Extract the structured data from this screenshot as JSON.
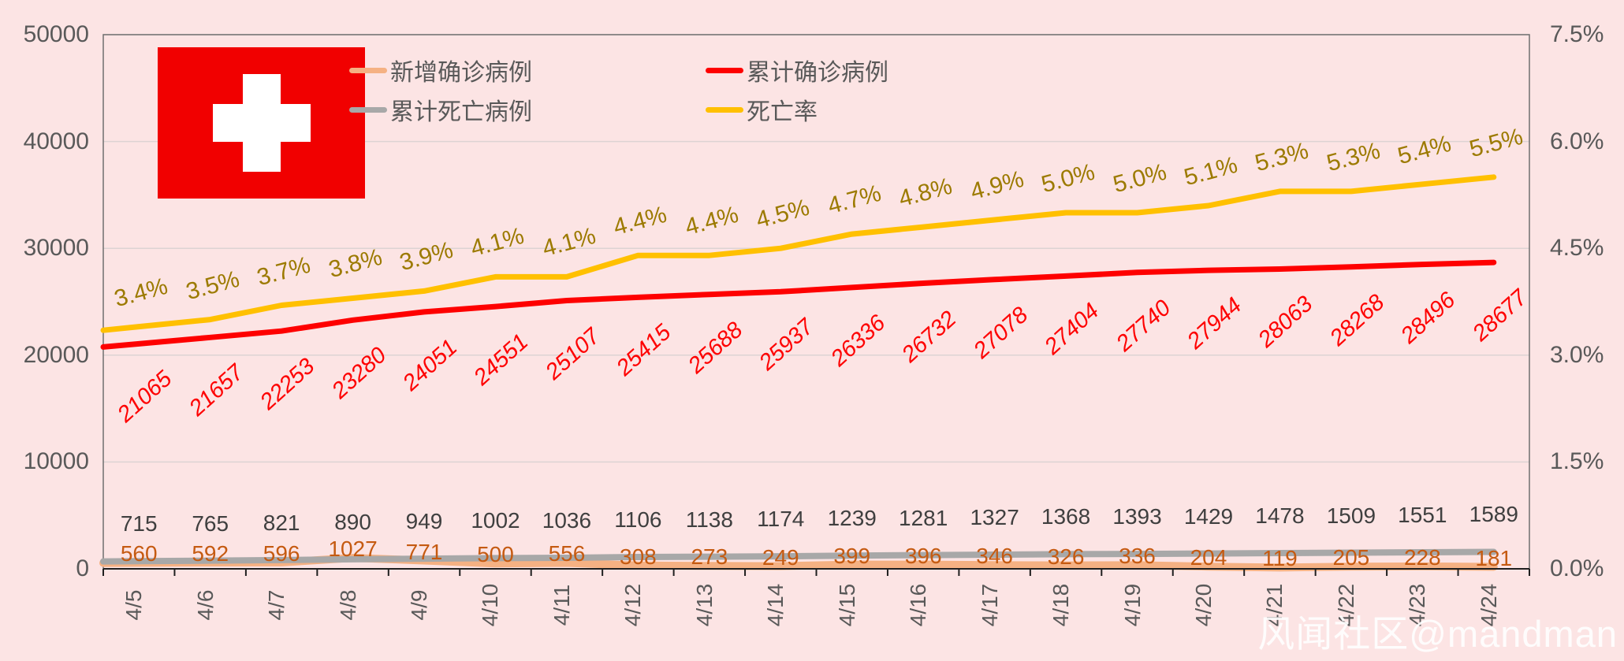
{
  "colors": {
    "background": "#fce4e4",
    "flag_red": "#f10000",
    "flag_cross": "#ffffff",
    "axis_text": "#595959",
    "grid_line": "#ddd3d3",
    "watermark_text": "#ffffff"
  },
  "flag": {
    "country": "switzerland"
  },
  "watermark": {
    "text": "风闻社区@mandman"
  },
  "legend": [
    {
      "label": "新增确诊病例",
      "color": "#f5b183"
    },
    {
      "label": "累计确诊病例",
      "color": "#fe0000"
    },
    {
      "label": "累计死亡病例",
      "color": "#a8a8a8"
    },
    {
      "label": "死亡率",
      "color": "#ffc000"
    }
  ],
  "chart_data": {
    "type": "line",
    "categories": [
      "4/5",
      "4/6",
      "4/7",
      "4/8",
      "4/9",
      "4/10",
      "4/11",
      "4/12",
      "4/13",
      "4/14",
      "4/15",
      "4/16",
      "4/17",
      "4/18",
      "4/19",
      "4/20",
      "4/21",
      "4/22",
      "4/23",
      "4/24"
    ],
    "series": [
      {
        "key": "new_confirmed",
        "name": "新增确诊病例",
        "axis": "left",
        "color": "#f5b183",
        "label_color": "#c55a11",
        "values": [
          560,
          592,
          596,
          1027,
          771,
          500,
          556,
          308,
          273,
          249,
          399,
          396,
          346,
          326,
          336,
          204,
          119,
          205,
          228,
          181
        ]
      },
      {
        "key": "cumulative_confirmed",
        "name": "累计确诊病例",
        "axis": "left",
        "color": "#fe0000",
        "label_color": "#fe0000",
        "values": [
          21065,
          21657,
          22253,
          23280,
          24051,
          24551,
          25107,
          25415,
          25688,
          25937,
          26336,
          26732,
          27078,
          27404,
          27740,
          27944,
          28063,
          28268,
          28496,
          28677
        ]
      },
      {
        "key": "cumulative_deaths",
        "name": "累计死亡病例",
        "axis": "left",
        "color": "#a8a8a8",
        "label_color": "#3f3f3f",
        "values": [
          715,
          765,
          821,
          890,
          949,
          1002,
          1036,
          1106,
          1138,
          1174,
          1239,
          1281,
          1327,
          1368,
          1393,
          1429,
          1478,
          1509,
          1551,
          1589
        ]
      },
      {
        "key": "death_rate",
        "name": "死亡率",
        "axis": "right",
        "color": "#ffc000",
        "label_color": "#9c7a00",
        "values": [
          3.4,
          3.5,
          3.7,
          3.8,
          3.9,
          4.1,
          4.1,
          4.4,
          4.4,
          4.5,
          4.7,
          4.8,
          4.9,
          5.0,
          5.0,
          5.1,
          5.3,
          5.3,
          5.4,
          5.5
        ],
        "labels": [
          "3.4%",
          "3.5%",
          "3.7%",
          "3.8%",
          "3.9%",
          "4.1%",
          "4.1%",
          "4.4%",
          "4.4%",
          "4.5%",
          "4.7%",
          "4.8%",
          "4.9%",
          "5.0%",
          "5.0%",
          "5.1%",
          "5.3%",
          "5.3%",
          "5.4%",
          "5.5%"
        ]
      }
    ],
    "y_axis_left": {
      "labels": [
        "0",
        "10000",
        "20000",
        "30000",
        "40000",
        "50000"
      ],
      "values": [
        0,
        10000,
        20000,
        30000,
        40000,
        50000
      ],
      "max": 50000
    },
    "y_axis_right": {
      "labels": [
        "0.0%",
        "1.5%",
        "3.0%",
        "4.5%",
        "6.0%",
        "7.5%"
      ],
      "values": [
        0,
        1.5,
        3,
        4.5,
        6,
        7.5
      ],
      "max": 7.5
    },
    "grid": true,
    "legend_position": "top-center"
  }
}
